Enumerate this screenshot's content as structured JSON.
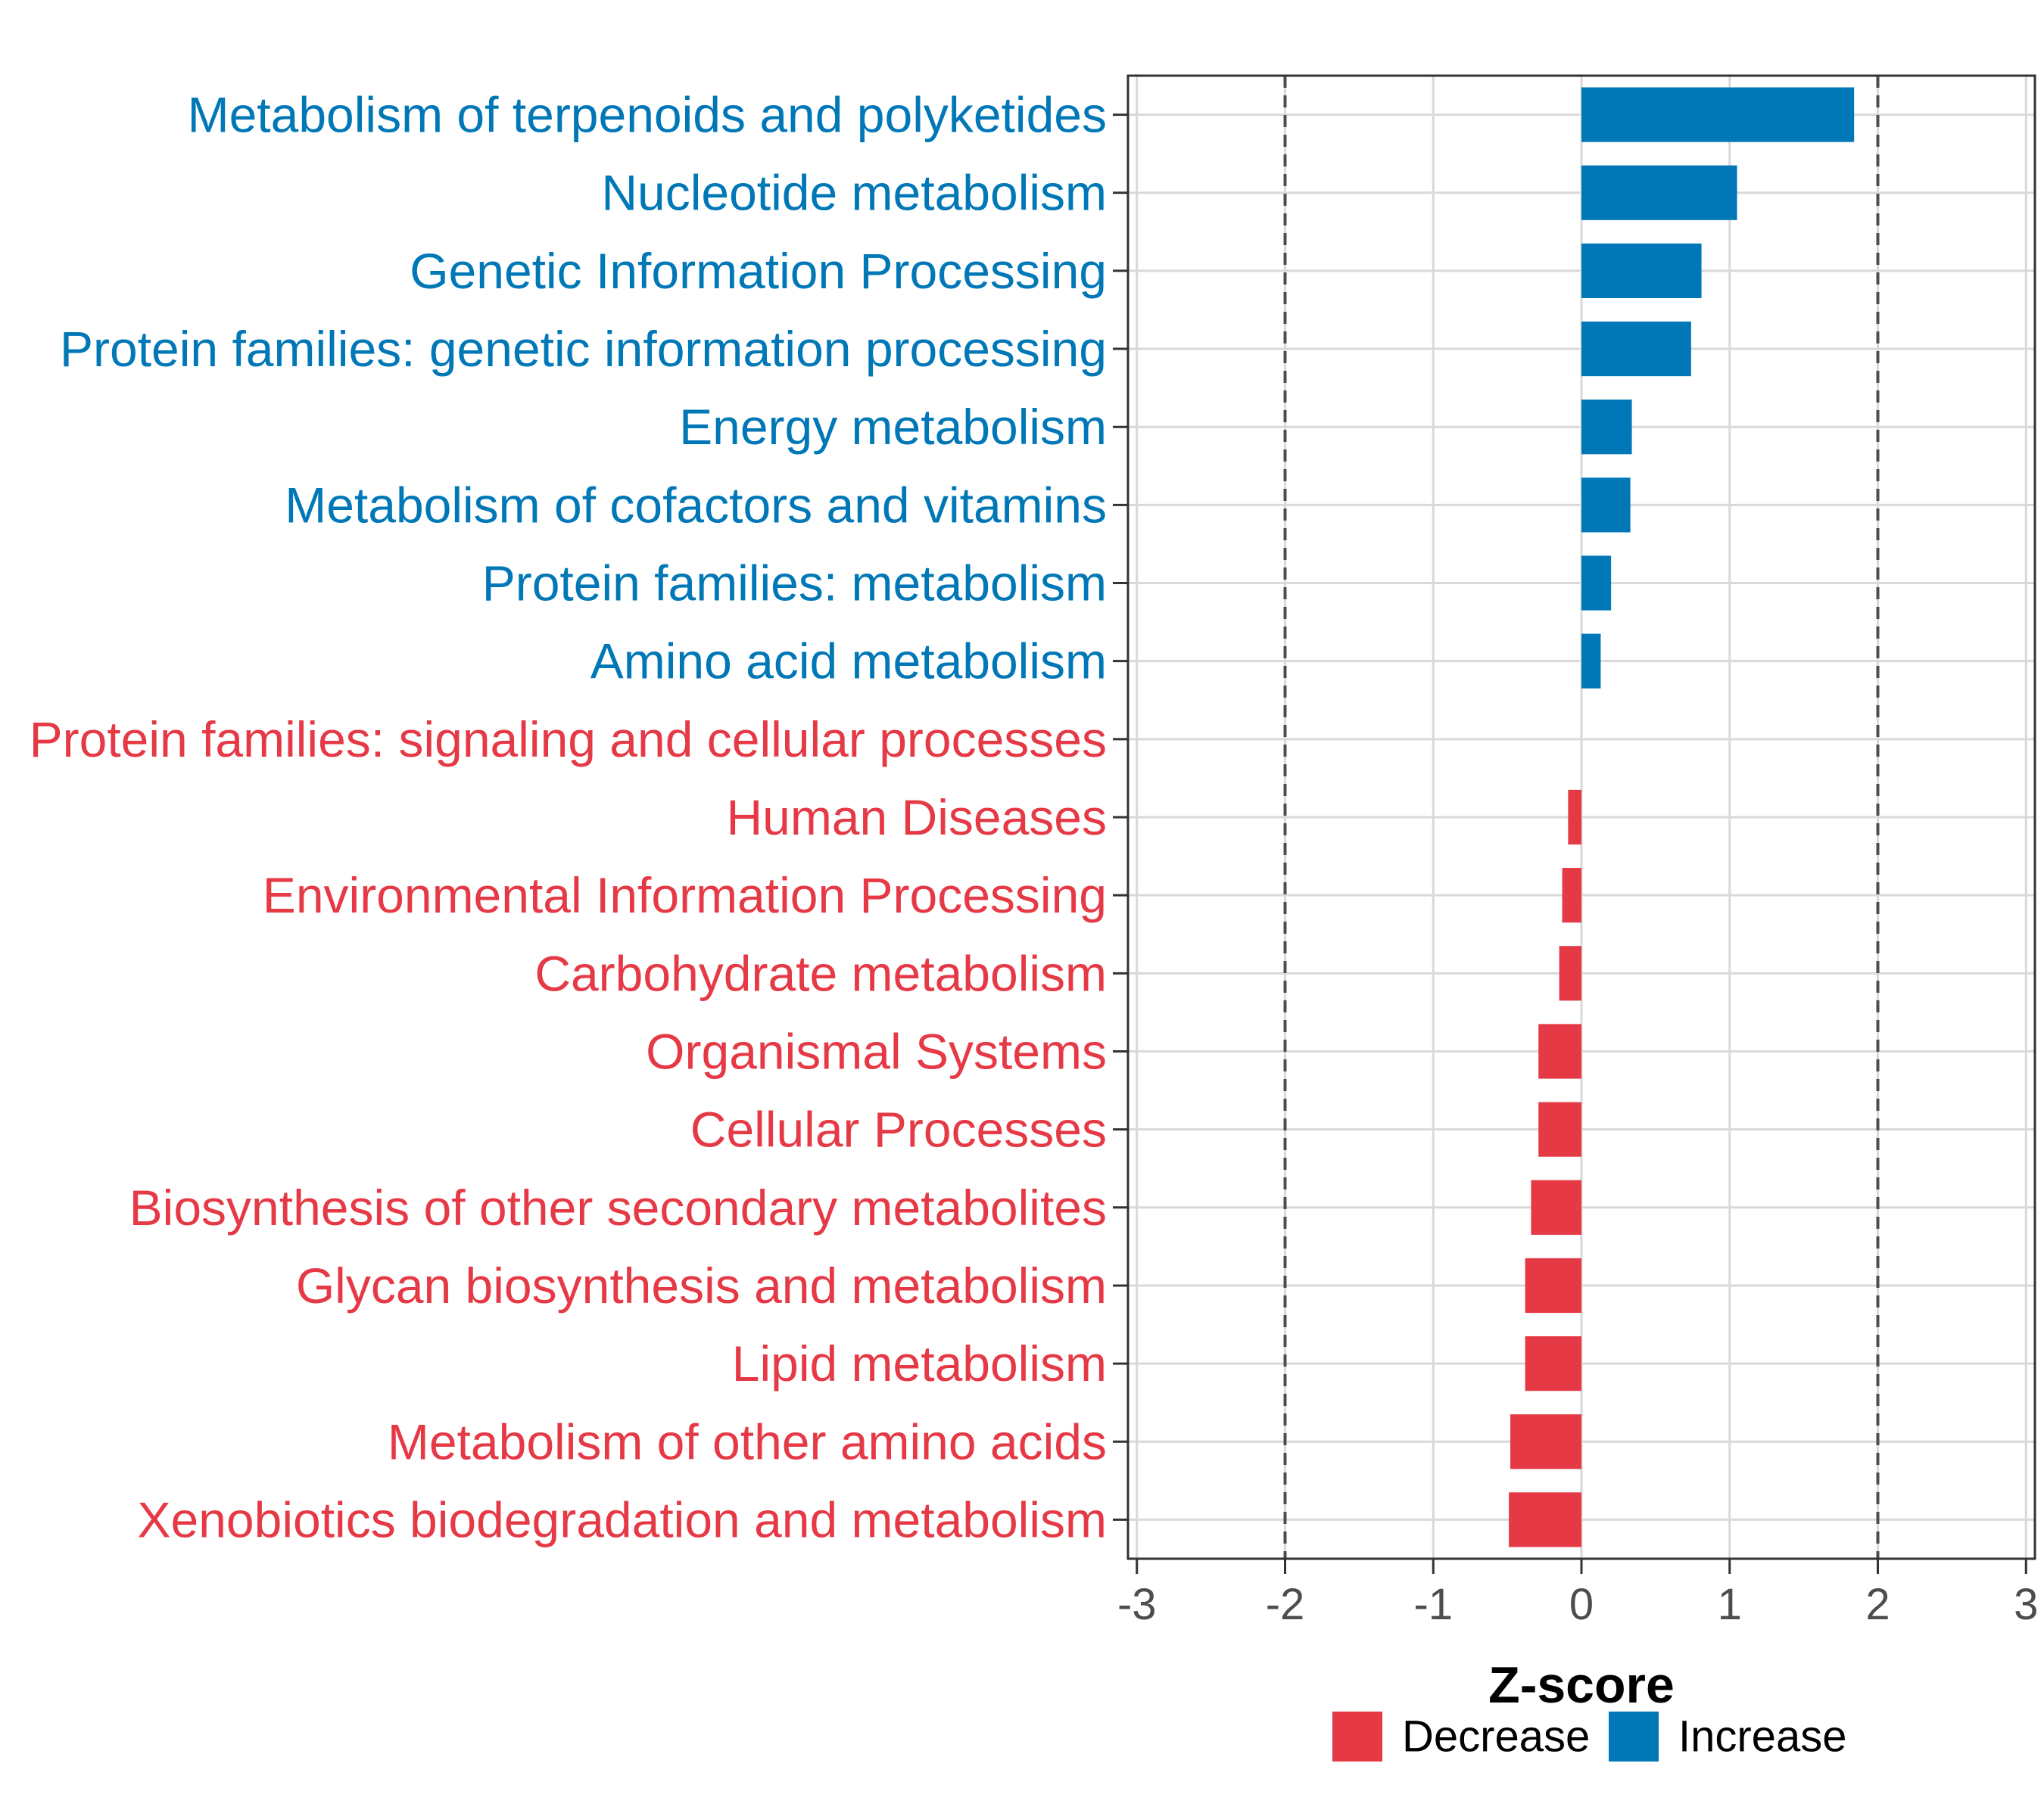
{
  "chart_data": {
    "type": "bar",
    "orientation": "horizontal",
    "xlabel": "Z-score",
    "ylabel": "",
    "xlim": [
      -3.06,
      3.06
    ],
    "xticks": [
      -3,
      -2,
      -1,
      0,
      1,
      2,
      3
    ],
    "xtick_labels": [
      "-3",
      "-2",
      "-1",
      "0",
      "1",
      "2",
      "3"
    ],
    "reference_lines": [
      -2,
      2
    ],
    "grid": true,
    "legend_position": "bottom",
    "colors": {
      "Decrease": "#E63946",
      "Increase": "#0077B6"
    },
    "legend": [
      {
        "label": "Decrease",
        "color": "#E63946"
      },
      {
        "label": "Increase",
        "color": "#0077B6"
      }
    ],
    "categories": [
      "Metabolism of terpenoids and polyketides",
      "Nucleotide metabolism",
      "Genetic Information Processing",
      "Protein families: genetic information processing",
      "Energy metabolism",
      "Metabolism of cofactors and vitamins",
      "Protein families: metabolism",
      "Amino acid metabolism",
      "Protein families: signaling and cellular processes",
      "Human Diseases",
      "Environmental Information Processing",
      "Carbohydrate metabolism",
      "Organismal Systems",
      "Cellular Processes",
      "Biosynthesis of other secondary metabolites",
      "Glycan biosynthesis and metabolism",
      "Lipid metabolism",
      "Metabolism of other amino acids",
      "Xenobiotics biodegradation and metabolism"
    ],
    "values": [
      1.84,
      1.05,
      0.81,
      0.74,
      0.34,
      0.33,
      0.2,
      0.13,
      0.0,
      -0.09,
      -0.13,
      -0.15,
      -0.29,
      -0.29,
      -0.34,
      -0.38,
      -0.38,
      -0.48,
      -0.49
    ],
    "groups": [
      "Increase",
      "Increase",
      "Increase",
      "Increase",
      "Increase",
      "Increase",
      "Increase",
      "Increase",
      "Decrease",
      "Decrease",
      "Decrease",
      "Decrease",
      "Decrease",
      "Decrease",
      "Decrease",
      "Decrease",
      "Decrease",
      "Decrease",
      "Decrease"
    ]
  }
}
